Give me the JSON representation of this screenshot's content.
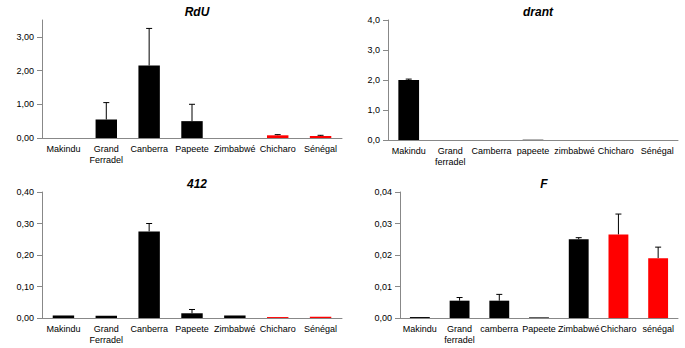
{
  "chart_data": [
    {
      "type": "bar",
      "title": "RdU",
      "categories": [
        "Makindu",
        "Grand\nFerradel",
        "Canberra",
        "Papeete",
        "Zimbabwé",
        "Chicharo",
        "Sénégal"
      ],
      "values": [
        0,
        0.55,
        2.15,
        0.5,
        0,
        0.08,
        0.06
      ],
      "errors": [
        null,
        0.5,
        1.1,
        0.5,
        null,
        0.02,
        0.02
      ],
      "colors": [
        "#000000",
        "#000000",
        "#000000",
        "#000000",
        "#000000",
        "#ff0000",
        "#ff0000"
      ],
      "ylim": [
        0,
        3.5
      ],
      "yticks": [
        {
          "value": 0,
          "label": "0,00"
        },
        {
          "value": 1,
          "label": "1,00"
        },
        {
          "value": 2,
          "label": "2,00"
        },
        {
          "value": 3,
          "label": "3,00"
        }
      ],
      "grid": false
    },
    {
      "type": "bar",
      "title": "drant",
      "categories": [
        "Makindu",
        "Grand\nferradel",
        "Camberra",
        "papeete",
        "zimbabwé",
        "Chicharo",
        "Sénégal"
      ],
      "values": [
        2.0,
        0,
        0,
        0.01,
        0,
        0,
        0
      ],
      "errors": [
        0.03,
        null,
        null,
        null,
        null,
        null,
        null
      ],
      "colors": [
        "#000000",
        "#000000",
        "#000000",
        "#000000",
        "#000000",
        "#000000",
        "#000000"
      ],
      "ylim": [
        0,
        4
      ],
      "yticks": [
        {
          "value": 0,
          "label": "0,0"
        },
        {
          "value": 1,
          "label": "1,0"
        },
        {
          "value": 2,
          "label": "2,0"
        },
        {
          "value": 3,
          "label": "3,0"
        },
        {
          "value": 4,
          "label": "4,0"
        }
      ],
      "grid": false
    },
    {
      "type": "bar",
      "title": "412",
      "categories": [
        "Makindu",
        "Grand\nFerradel",
        "Canberra",
        "Papeete",
        "Zimbabwé",
        "Chicharo",
        "Sénégal"
      ],
      "values": [
        0.008,
        0.007,
        0.275,
        0.015,
        0.008,
        0.003,
        0.004
      ],
      "errors": [
        null,
        null,
        0.025,
        0.012,
        null,
        null,
        null
      ],
      "colors": [
        "#000000",
        "#000000",
        "#000000",
        "#000000",
        "#000000",
        "#ff0000",
        "#ff0000"
      ],
      "ylim": [
        0,
        0.4
      ],
      "yticks": [
        {
          "value": 0,
          "label": "0,00"
        },
        {
          "value": 0.1,
          "label": "0,10"
        },
        {
          "value": 0.2,
          "label": "0,20"
        },
        {
          "value": 0.3,
          "label": "0,30"
        },
        {
          "value": 0.4,
          "label": "0,40"
        }
      ],
      "grid": false
    },
    {
      "type": "bar",
      "title": "F",
      "categories": [
        "Makindu",
        "Grand\nferradel",
        "camberra",
        "Papeete",
        "Zimbabwé",
        "Chicharo",
        "sénégal"
      ],
      "values": [
        0.0003,
        0.0055,
        0.0055,
        0.0002,
        0.025,
        0.0265,
        0.019
      ],
      "errors": [
        null,
        0.001,
        0.002,
        null,
        0.0005,
        0.0065,
        0.0035
      ],
      "colors": [
        "#000000",
        "#000000",
        "#000000",
        "#000000",
        "#000000",
        "#ff0000",
        "#ff0000"
      ],
      "ylim": [
        0,
        0.04
      ],
      "yticks": [
        {
          "value": 0,
          "label": "0,00"
        },
        {
          "value": 0.01,
          "label": "0,01"
        },
        {
          "value": 0.02,
          "label": "0,02"
        },
        {
          "value": 0.03,
          "label": "0,03"
        },
        {
          "value": 0.04,
          "label": "0,04"
        }
      ],
      "grid": false
    }
  ]
}
